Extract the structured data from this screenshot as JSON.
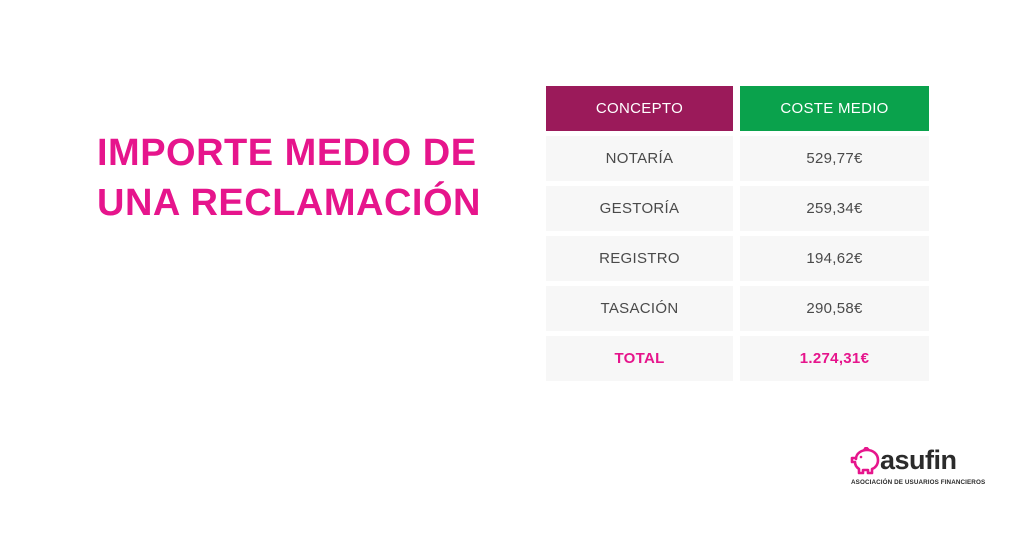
{
  "title": {
    "line1": "IMPORTE MEDIO DE",
    "line2": "UNA RECLAMACIÓN"
  },
  "table": {
    "headers": {
      "concept": "CONCEPTO",
      "cost": "COSTE MEDIO"
    },
    "rows": [
      {
        "concept": "NOTARÍA",
        "cost": "529,77€"
      },
      {
        "concept": "GESTORÍA",
        "cost": "259,34€"
      },
      {
        "concept": "REGISTRO",
        "cost": "194,62€"
      },
      {
        "concept": "TASACIÓN",
        "cost": "290,58€"
      }
    ],
    "total": {
      "concept": "TOTAL",
      "cost": "1.274,31€"
    }
  },
  "logo": {
    "word": "asufin",
    "subtitle": "ASOCIACIÓN DE USUARIOS FINANCIEROS",
    "icon": "piggy-bank-icon"
  },
  "colors": {
    "title": "#e6158c",
    "header_concept": "#9b1a5a",
    "header_cost": "#0aa24c"
  }
}
